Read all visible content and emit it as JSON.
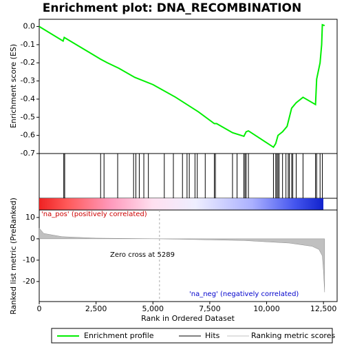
{
  "chart_data": [
    {
      "type": "line",
      "title": "Enrichment plot: DNA_RECOMBINATION",
      "ylabel": "Enrichment score (ES)",
      "color": "#00ee00",
      "x": [
        0,
        1050,
        1100,
        2700,
        3000,
        3500,
        4200,
        5000,
        6000,
        7000,
        7700,
        7800,
        8500,
        9000,
        9100,
        9200,
        10300,
        10400,
        10500,
        10700,
        10900,
        11000,
        11100,
        11300,
        11600,
        12150,
        12200,
        12350,
        12420,
        12450,
        12550
      ],
      "values": [
        0,
        -0.08,
        -0.06,
        -0.18,
        -0.2,
        -0.23,
        -0.28,
        -0.32,
        -0.39,
        -0.47,
        -0.535,
        -0.535,
        -0.585,
        -0.605,
        -0.58,
        -0.575,
        -0.665,
        -0.645,
        -0.6,
        -0.58,
        -0.55,
        -0.5,
        -0.45,
        -0.42,
        -0.39,
        -0.43,
        -0.29,
        -0.2,
        -0.1,
        0.01,
        0.005
      ],
      "xlim": [
        0,
        13100
      ],
      "ylim": [
        -0.7,
        0.04
      ],
      "yticks": [
        {
          "value": 0,
          "label": "0.0"
        },
        -0.1,
        -0.2,
        -0.3,
        -0.4,
        -0.5,
        -0.6,
        -0.7
      ],
      "legend": [
        {
          "name": "Enrichment profile",
          "color": "#00ee00"
        },
        {
          "name": "Hits",
          "color": "#000000"
        },
        {
          "name": "Ranking metric scores",
          "color": "#c0c0c0"
        }
      ]
    },
    {
      "type": "hits",
      "color": "#000000",
      "xlim": [
        0,
        13100
      ],
      "x": [
        1080,
        1120,
        2700,
        2850,
        3450,
        4150,
        4250,
        4400,
        4600,
        4800,
        5500,
        5900,
        6300,
        6500,
        6600,
        6850,
        6950,
        7300,
        7700,
        7750,
        8500,
        8700,
        9000,
        9050,
        9100,
        9200,
        10300,
        10400,
        10450,
        10500,
        10550,
        10700,
        10850,
        10950,
        11000,
        11100,
        11150,
        11300,
        11600,
        12150,
        12200,
        12350,
        12450
      ]
    },
    {
      "type": "area",
      "ylabel": "Ranked list metric (PreRanked)",
      "xlabel": "Rank in Ordered Dataset",
      "color": "#c0c0c0",
      "x": [
        0,
        200,
        1000,
        2500,
        5289,
        9000,
        11000,
        12000,
        12300,
        12450,
        12500,
        12550
      ],
      "values": [
        5,
        2.5,
        1,
        0.3,
        0,
        -0.8,
        -2,
        -3.5,
        -5,
        -8,
        -15,
        -25
      ],
      "xlim": [
        0,
        13100
      ],
      "ylim": [
        -29.4,
        13.5
      ],
      "xticks": [
        0,
        {
          "value": 2500,
          "label": "2,500"
        },
        {
          "value": 5000,
          "label": "5,000"
        },
        {
          "value": 7500,
          "label": "7,500"
        },
        {
          "value": 10000,
          "label": "10,000"
        },
        {
          "value": 12500,
          "label": "12,500"
        }
      ],
      "yticks": [
        10,
        0,
        -10,
        -20
      ],
      "pos_label": "'na_pos' (positively correlated)",
      "neg_label": "'na_neg' (negatively correlated)",
      "zero_cross": {
        "value": 5289,
        "label": "Zero cross at 5289"
      }
    }
  ]
}
